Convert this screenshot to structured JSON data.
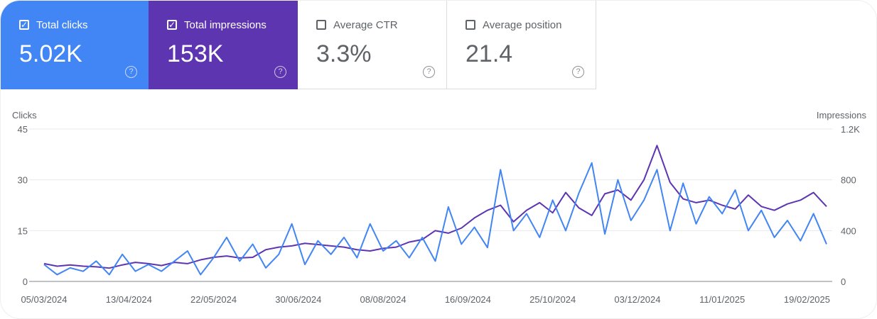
{
  "cards": [
    {
      "label": "Total clicks",
      "value": "5.02K",
      "checked": true,
      "color": "#4285f4"
    },
    {
      "label": "Total impressions",
      "value": "153K",
      "checked": true,
      "color": "#5e35b1"
    },
    {
      "label": "Average CTR",
      "value": "3.3%",
      "checked": false
    },
    {
      "label": "Average position",
      "value": "21.4",
      "checked": false
    }
  ],
  "chart_data": {
    "type": "line",
    "left_axis": {
      "label": "Clicks",
      "ticks": [
        "0",
        "15",
        "30",
        "45"
      ],
      "range": [
        0,
        45
      ]
    },
    "right_axis": {
      "label": "Impressions",
      "ticks": [
        "0",
        "400",
        "800",
        "1.2K"
      ],
      "range": [
        0,
        1200
      ]
    },
    "x_ticks": [
      "05/03/2024",
      "13/04/2024",
      "22/05/2024",
      "30/06/2024",
      "08/08/2024",
      "16/09/2024",
      "25/10/2024",
      "03/12/2024",
      "11/01/2025",
      "19/02/2025"
    ],
    "grid": true,
    "x": [
      "05/03/2024",
      "11/03/2024",
      "17/03/2024",
      "23/03/2024",
      "29/03/2024",
      "04/04/2024",
      "10/04/2024",
      "16/04/2024",
      "22/04/2024",
      "28/04/2024",
      "04/05/2024",
      "10/05/2024",
      "16/05/2024",
      "22/05/2024",
      "28/05/2024",
      "03/06/2024",
      "09/06/2024",
      "15/06/2024",
      "21/06/2024",
      "27/06/2024",
      "03/07/2024",
      "09/07/2024",
      "15/07/2024",
      "21/07/2024",
      "27/07/2024",
      "02/08/2024",
      "08/08/2024",
      "14/08/2024",
      "20/08/2024",
      "26/08/2024",
      "01/09/2024",
      "07/09/2024",
      "13/09/2024",
      "19/09/2024",
      "25/09/2024",
      "01/10/2024",
      "07/10/2024",
      "13/10/2024",
      "19/10/2024",
      "25/10/2024",
      "31/10/2024",
      "06/11/2024",
      "12/11/2024",
      "18/11/2024",
      "24/11/2024",
      "30/11/2024",
      "06/12/2024",
      "12/12/2024",
      "18/12/2024",
      "24/12/2024",
      "30/12/2024",
      "05/01/2025",
      "11/01/2025",
      "17/01/2025",
      "23/01/2025",
      "29/01/2025",
      "04/02/2025",
      "10/02/2025",
      "16/02/2025",
      "22/02/2025",
      "28/02/2025"
    ],
    "series": [
      {
        "name": "Clicks",
        "axis": "left",
        "color": "#4285f4",
        "values": [
          5,
          2,
          4,
          3,
          6,
          2,
          8,
          3,
          5,
          3,
          6,
          9,
          2,
          7,
          13,
          6,
          11,
          4,
          8,
          17,
          5,
          12,
          8,
          13,
          7,
          17,
          9,
          12,
          7,
          13,
          6,
          22,
          11,
          16,
          10,
          33,
          15,
          20,
          13,
          24,
          15,
          26,
          35,
          14,
          30,
          18,
          24,
          33,
          15,
          29,
          17,
          25,
          20,
          27,
          15,
          21,
          13,
          18,
          12,
          20,
          11
        ]
      },
      {
        "name": "Impressions",
        "axis": "right",
        "color": "#5e35b1",
        "values": [
          140,
          120,
          130,
          120,
          115,
          105,
          130,
          150,
          140,
          125,
          150,
          140,
          170,
          190,
          200,
          185,
          190,
          250,
          270,
          280,
          300,
          290,
          280,
          270,
          250,
          240,
          260,
          270,
          310,
          330,
          400,
          380,
          420,
          500,
          560,
          600,
          470,
          560,
          620,
          540,
          700,
          580,
          520,
          690,
          720,
          640,
          800,
          1070,
          780,
          650,
          620,
          640,
          600,
          570,
          680,
          590,
          560,
          610,
          640,
          700,
          590
        ]
      }
    ]
  }
}
